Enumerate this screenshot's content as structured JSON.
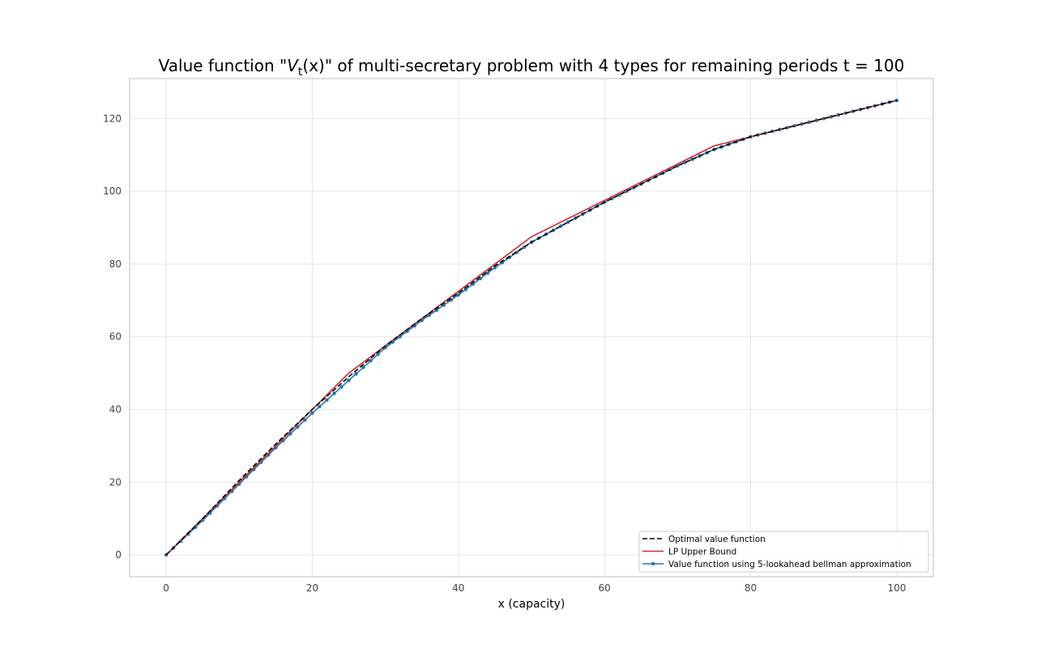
{
  "chart_data": {
    "type": "line",
    "title_parts": {
      "prefix": "Value function \"",
      "symbol": "V",
      "subscript": "t",
      "argument": "(x)",
      "suffix": "\" of multi-secretary problem with 4 types for remaining periods t = 100"
    },
    "xlabel": "x (capacity)",
    "ylabel": "",
    "xlim": [
      -5,
      105
    ],
    "ylim": [
      -6,
      131
    ],
    "xticks": [
      0,
      20,
      40,
      60,
      80,
      100
    ],
    "yticks": [
      0,
      20,
      40,
      60,
      80,
      100,
      120
    ],
    "grid": true,
    "legend_position": "bottom-right",
    "series": [
      {
        "name": "Optimal value function",
        "style": "dashed",
        "color": "#000000",
        "x": [
          0,
          5,
          10,
          15,
          20,
          25,
          30,
          35,
          40,
          45,
          50,
          55,
          60,
          65,
          70,
          75,
          80,
          85,
          90,
          95,
          100
        ],
        "y": [
          0,
          10,
          20.5,
          30.5,
          40,
          49,
          57.5,
          65,
          72,
          79.5,
          86,
          91.5,
          97,
          102,
          107,
          111.5,
          115,
          117.5,
          120,
          122.5,
          125
        ]
      },
      {
        "name": "LP Upper Bound",
        "style": "solid",
        "color": "#d62728",
        "x": [
          0,
          25,
          50,
          75,
          100
        ],
        "y": [
          0,
          50,
          87.5,
          112.5,
          125
        ]
      },
      {
        "name": "Value function using 5-lookahead bellman approximation",
        "style": "solid-markers",
        "color": "#1f77b4",
        "x": [
          0,
          5,
          10,
          15,
          20,
          25,
          30,
          35,
          40,
          45,
          50,
          55,
          60,
          65,
          70,
          75,
          80,
          85,
          90,
          95,
          100
        ],
        "y": [
          0,
          9.5,
          19.5,
          29.5,
          39,
          48,
          57,
          64.5,
          71.5,
          79,
          86,
          91.5,
          97,
          102,
          107,
          111.5,
          115,
          117.5,
          120,
          122.5,
          125
        ]
      }
    ]
  }
}
